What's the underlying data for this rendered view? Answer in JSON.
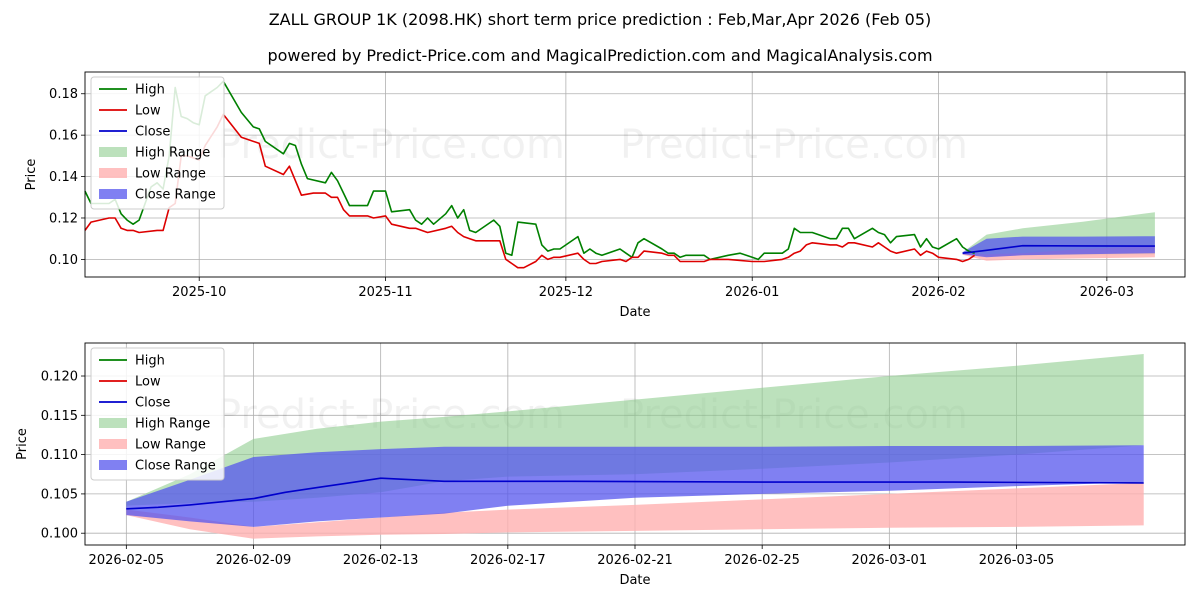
{
  "header": {
    "title": "ZALL GROUP 1K (2098.HK) short term price prediction : Feb,Mar,Apr 2026 (Feb 05)",
    "subtitle": "powered by Predict-Price.com and MagicalPrediction.com and MagicalAnalysis.com"
  },
  "watermark": "Predict-Price.com",
  "colors": {
    "high": "#008000",
    "low": "#dd0000",
    "close": "#0000cc",
    "high_range": "#8fcd8f",
    "low_range": "#ffb0b0",
    "close_range": "#5555ee",
    "grid": "#b0b0b0"
  },
  "chart_data": [
    {
      "type": "line",
      "xlabel": "Date",
      "ylabel": "Price",
      "ylim": [
        0.0915,
        0.1905
      ],
      "xlim_days": [
        -146,
        37
      ],
      "grid": true,
      "legend_position": "upper-left",
      "legend": [
        "High",
        "Low",
        "Close",
        "High Range",
        "Low Range",
        "Close Range"
      ],
      "yticks": [
        {
          "v": 0.1,
          "label": "0.10"
        },
        {
          "v": 0.12,
          "label": "0.12"
        },
        {
          "v": 0.14,
          "label": "0.14"
        },
        {
          "v": 0.16,
          "label": "0.16"
        },
        {
          "v": 0.18,
          "label": "0.18"
        }
      ],
      "xticks": [
        {
          "d": -127,
          "label": "2025-10"
        },
        {
          "d": -96,
          "label": "2025-11"
        },
        {
          "d": -66,
          "label": "2025-12"
        },
        {
          "d": -35,
          "label": "2026-01"
        },
        {
          "d": -4,
          "label": "2026-02"
        },
        {
          "d": 24,
          "label": "2026-03"
        }
      ],
      "date_index": "days relative to 2026-02-05",
      "high": [
        [
          -146,
          0.133
        ],
        [
          -145,
          0.127
        ],
        [
          -142,
          0.127
        ],
        [
          -141,
          0.129
        ],
        [
          -140,
          0.122
        ],
        [
          -139,
          0.119
        ],
        [
          -138,
          0.117
        ],
        [
          -137,
          0.119
        ],
        [
          -136,
          0.127
        ],
        [
          -135,
          0.135
        ],
        [
          -134,
          0.137
        ],
        [
          -133,
          0.134
        ],
        [
          -132,
          0.15
        ],
        [
          -131,
          0.183
        ],
        [
          -130,
          0.169
        ],
        [
          -129,
          0.168
        ],
        [
          -128,
          0.166
        ],
        [
          -127,
          0.165
        ],
        [
          -126,
          0.179
        ],
        [
          -124,
          0.183
        ],
        [
          -123,
          0.186
        ],
        [
          -120,
          0.171
        ],
        [
          -118,
          0.164
        ],
        [
          -117,
          0.163
        ],
        [
          -116,
          0.157
        ],
        [
          -113,
          0.151
        ],
        [
          -112,
          0.156
        ],
        [
          -111,
          0.155
        ],
        [
          -110,
          0.146
        ],
        [
          -109,
          0.139
        ],
        [
          -106,
          0.137
        ],
        [
          -105,
          0.142
        ],
        [
          -104,
          0.138
        ],
        [
          -103,
          0.132
        ],
        [
          -102,
          0.126
        ],
        [
          -99,
          0.126
        ],
        [
          -98,
          0.133
        ],
        [
          -96,
          0.133
        ],
        [
          -95,
          0.123
        ],
        [
          -92,
          0.124
        ],
        [
          -91,
          0.119
        ],
        [
          -90,
          0.117
        ],
        [
          -89,
          0.12
        ],
        [
          -88,
          0.117
        ],
        [
          -86,
          0.122
        ],
        [
          -85,
          0.126
        ],
        [
          -84,
          0.12
        ],
        [
          -83,
          0.124
        ],
        [
          -82,
          0.114
        ],
        [
          -81,
          0.113
        ],
        [
          -78,
          0.119
        ],
        [
          -77,
          0.116
        ],
        [
          -76,
          0.103
        ],
        [
          -75,
          0.102
        ],
        [
          -74,
          0.118
        ],
        [
          -71,
          0.117
        ],
        [
          -70,
          0.107
        ],
        [
          -69,
          0.104
        ],
        [
          -68,
          0.105
        ],
        [
          -67,
          0.105
        ],
        [
          -64,
          0.111
        ],
        [
          -63,
          0.103
        ],
        [
          -62,
          0.105
        ],
        [
          -61,
          0.103
        ],
        [
          -60,
          0.102
        ],
        [
          -57,
          0.105
        ],
        [
          -56,
          0.103
        ],
        [
          -55,
          0.101
        ],
        [
          -54,
          0.108
        ],
        [
          -53,
          0.11
        ],
        [
          -50,
          0.105
        ],
        [
          -49,
          0.103
        ],
        [
          -48,
          0.103
        ],
        [
          -47,
          0.101
        ],
        [
          -46,
          0.102
        ],
        [
          -43,
          0.102
        ],
        [
          -42,
          0.1
        ],
        [
          -39,
          0.102
        ],
        [
          -37,
          0.103
        ],
        [
          -35,
          0.101
        ],
        [
          -34,
          0.1
        ],
        [
          -33,
          0.103
        ],
        [
          -30,
          0.103
        ],
        [
          -29,
          0.105
        ],
        [
          -28,
          0.115
        ],
        [
          -27,
          0.113
        ],
        [
          -25,
          0.113
        ],
        [
          -22,
          0.11
        ],
        [
          -21,
          0.11
        ],
        [
          -20,
          0.115
        ],
        [
          -19,
          0.115
        ],
        [
          -18,
          0.11
        ],
        [
          -15,
          0.115
        ],
        [
          -14,
          0.113
        ],
        [
          -13,
          0.112
        ],
        [
          -12,
          0.108
        ],
        [
          -11,
          0.111
        ],
        [
          -8,
          0.112
        ],
        [
          -7,
          0.106
        ],
        [
          -6,
          0.11
        ],
        [
          -5,
          0.106
        ],
        [
          -4,
          0.105
        ],
        [
          -1,
          0.11
        ],
        [
          0,
          0.106
        ],
        [
          1,
          0.104
        ],
        [
          2,
          0.103
        ]
      ],
      "low": [
        [
          -146,
          0.114
        ],
        [
          -145,
          0.118
        ],
        [
          -142,
          0.12
        ],
        [
          -141,
          0.12
        ],
        [
          -140,
          0.115
        ],
        [
          -139,
          0.114
        ],
        [
          -138,
          0.114
        ],
        [
          -137,
          0.113
        ],
        [
          -134,
          0.114
        ],
        [
          -133,
          0.114
        ],
        [
          -132,
          0.125
        ],
        [
          -131,
          0.127
        ],
        [
          -130,
          0.15
        ],
        [
          -129,
          0.15
        ],
        [
          -128,
          0.149
        ],
        [
          -127,
          0.148
        ],
        [
          -126,
          0.155
        ],
        [
          -124,
          0.164
        ],
        [
          -123,
          0.17
        ],
        [
          -120,
          0.159
        ],
        [
          -117,
          0.156
        ],
        [
          -116,
          0.145
        ],
        [
          -113,
          0.141
        ],
        [
          -112,
          0.145
        ],
        [
          -111,
          0.138
        ],
        [
          -110,
          0.131
        ],
        [
          -108,
          0.132
        ],
        [
          -106,
          0.132
        ],
        [
          -105,
          0.13
        ],
        [
          -104,
          0.13
        ],
        [
          -103,
          0.124
        ],
        [
          -102,
          0.121
        ],
        [
          -99,
          0.121
        ],
        [
          -98,
          0.12
        ],
        [
          -96,
          0.121
        ],
        [
          -95,
          0.117
        ],
        [
          -92,
          0.115
        ],
        [
          -91,
          0.115
        ],
        [
          -90,
          0.114
        ],
        [
          -89,
          0.113
        ],
        [
          -86,
          0.115
        ],
        [
          -85,
          0.116
        ],
        [
          -84,
          0.113
        ],
        [
          -83,
          0.111
        ],
        [
          -82,
          0.11
        ],
        [
          -81,
          0.109
        ],
        [
          -78,
          0.109
        ],
        [
          -77,
          0.109
        ],
        [
          -76,
          0.1
        ],
        [
          -75,
          0.098
        ],
        [
          -74,
          0.096
        ],
        [
          -73,
          0.096
        ],
        [
          -71,
          0.099
        ],
        [
          -70,
          0.102
        ],
        [
          -69,
          0.1
        ],
        [
          -68,
          0.101
        ],
        [
          -67,
          0.101
        ],
        [
          -64,
          0.103
        ],
        [
          -63,
          0.1
        ],
        [
          -62,
          0.098
        ],
        [
          -61,
          0.098
        ],
        [
          -60,
          0.099
        ],
        [
          -57,
          0.1
        ],
        [
          -56,
          0.099
        ],
        [
          -55,
          0.101
        ],
        [
          -54,
          0.101
        ],
        [
          -53,
          0.104
        ],
        [
          -50,
          0.103
        ],
        [
          -49,
          0.102
        ],
        [
          -48,
          0.102
        ],
        [
          -47,
          0.099
        ],
        [
          -46,
          0.099
        ],
        [
          -43,
          0.099
        ],
        [
          -42,
          0.1
        ],
        [
          -39,
          0.1
        ],
        [
          -35,
          0.099
        ],
        [
          -34,
          0.099
        ],
        [
          -33,
          0.099
        ],
        [
          -30,
          0.1
        ],
        [
          -29,
          0.101
        ],
        [
          -28,
          0.103
        ],
        [
          -27,
          0.104
        ],
        [
          -26,
          0.107
        ],
        [
          -25,
          0.108
        ],
        [
          -22,
          0.107
        ],
        [
          -21,
          0.107
        ],
        [
          -20,
          0.106
        ],
        [
          -19,
          0.108
        ],
        [
          -18,
          0.108
        ],
        [
          -15,
          0.106
        ],
        [
          -14,
          0.108
        ],
        [
          -13,
          0.106
        ],
        [
          -12,
          0.104
        ],
        [
          -11,
          0.103
        ],
        [
          -8,
          0.105
        ],
        [
          -7,
          0.102
        ],
        [
          -6,
          0.104
        ],
        [
          -5,
          0.103
        ],
        [
          -4,
          0.101
        ],
        [
          -1,
          0.1
        ],
        [
          0,
          0.099
        ],
        [
          1,
          0.1
        ],
        [
          2,
          0.102
        ]
      ],
      "close": [
        [
          0,
          0.103
        ],
        [
          4,
          0.1044
        ],
        [
          10,
          0.1066
        ],
        [
          20,
          0.1065
        ],
        [
          32,
          0.1064
        ]
      ],
      "high_range": {
        "x": [
          0,
          4,
          10,
          20,
          32
        ],
        "upper": [
          0.1035,
          0.112,
          0.115,
          0.1182,
          0.1228
        ],
        "lower": [
          0.103,
          0.1015,
          0.102,
          0.1022,
          0.1025
        ]
      },
      "low_range": {
        "x": [
          0,
          4,
          10,
          20,
          32
        ],
        "upper": [
          0.103,
          0.1025,
          0.103,
          0.105,
          0.1065
        ],
        "lower": [
          0.1022,
          0.0993,
          0.1,
          0.1005,
          0.101
        ]
      },
      "close_range": {
        "x": [
          0,
          4,
          10,
          20,
          32
        ],
        "upper": [
          0.1035,
          0.11,
          0.111,
          0.111,
          0.1112
        ],
        "lower": [
          0.1025,
          0.101,
          0.102,
          0.1025,
          0.103
        ]
      }
    },
    {
      "type": "line",
      "xlabel": "Date",
      "ylabel": "Price",
      "ylim": [
        0.0985,
        0.1242
      ],
      "xlim_days": [
        -1.3,
        33.3
      ],
      "grid": true,
      "legend_position": "upper-left",
      "legend": [
        "High",
        "Low",
        "Close",
        "High Range",
        "Low Range",
        "Close Range"
      ],
      "yticks": [
        {
          "v": 0.1,
          "label": "0.100"
        },
        {
          "v": 0.105,
          "label": "0.105"
        },
        {
          "v": 0.11,
          "label": "0.110"
        },
        {
          "v": 0.115,
          "label": "0.115"
        },
        {
          "v": 0.12,
          "label": "0.120"
        }
      ],
      "xticks": [
        {
          "d": 0,
          "label": "2026-02-05"
        },
        {
          "d": 4,
          "label": "2026-02-09"
        },
        {
          "d": 8,
          "label": "2026-02-13"
        },
        {
          "d": 12,
          "label": "2026-02-17"
        },
        {
          "d": 16,
          "label": "2026-02-21"
        },
        {
          "d": 20,
          "label": "2026-02-25"
        },
        {
          "d": 24,
          "label": "2026-03-01"
        },
        {
          "d": 28,
          "label": "2026-03-05"
        }
      ],
      "date_index": "days relative to 2026-02-05",
      "close": [
        [
          0,
          0.1031
        ],
        [
          1,
          0.1033
        ],
        [
          2,
          0.1036
        ],
        [
          3,
          0.104
        ],
        [
          4,
          0.1044
        ],
        [
          5,
          0.1052
        ],
        [
          6,
          0.1058
        ],
        [
          7,
          0.1064
        ],
        [
          8,
          0.107
        ],
        [
          10,
          0.1066
        ],
        [
          14,
          0.1066
        ],
        [
          20,
          0.1065
        ],
        [
          26,
          0.1065
        ],
        [
          32,
          0.1064
        ]
      ],
      "high_range": {
        "x": [
          0,
          2,
          4,
          6,
          8,
          10,
          12,
          16,
          20,
          24,
          28,
          32
        ],
        "upper": [
          0.104,
          0.1075,
          0.112,
          0.1133,
          0.1142,
          0.1148,
          0.1155,
          0.117,
          0.1185,
          0.12,
          0.1213,
          0.1228
        ],
        "lower": [
          0.1035,
          0.1038,
          0.104,
          0.1045,
          0.1052,
          0.1066,
          0.1072,
          0.1075,
          0.1082,
          0.109,
          0.11,
          0.1112
        ]
      },
      "low_range": {
        "x": [
          0,
          2,
          4,
          6,
          8,
          10,
          12,
          16,
          20,
          24,
          28,
          32
        ],
        "upper": [
          0.103,
          0.102,
          0.1008,
          0.1014,
          0.102,
          0.1026,
          0.103,
          0.1036,
          0.1043,
          0.105,
          0.1057,
          0.1064
        ],
        "lower": [
          0.1023,
          0.1005,
          0.0993,
          0.0996,
          0.0998,
          0.0999,
          0.1001,
          0.1003,
          0.1005,
          0.1007,
          0.1008,
          0.101
        ]
      },
      "close_range": {
        "x": [
          0,
          2,
          4,
          6,
          8,
          10,
          12,
          16,
          20,
          24,
          28,
          32
        ],
        "upper": [
          0.104,
          0.1068,
          0.1097,
          0.1103,
          0.1107,
          0.111,
          0.111,
          0.111,
          0.111,
          0.1111,
          0.1111,
          0.1112
        ],
        "lower": [
          0.1023,
          0.1015,
          0.1008,
          0.1015,
          0.102,
          0.1025,
          0.1035,
          0.1045,
          0.105,
          0.1054,
          0.106,
          0.1065
        ]
      }
    }
  ]
}
